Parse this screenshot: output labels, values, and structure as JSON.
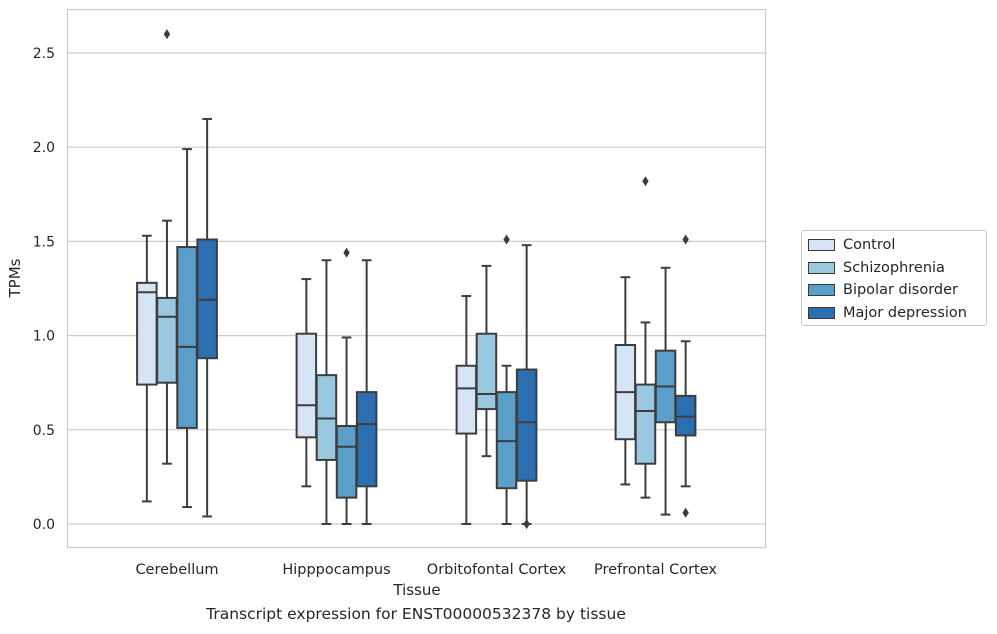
{
  "chart_data": {
    "type": "box",
    "xlabel": "Tissue",
    "ylabel": "TPMs",
    "ylim": [
      -0.12,
      2.75
    ],
    "yticks": [
      0.0,
      0.5,
      1.0,
      1.5,
      2.0,
      2.5
    ],
    "ytick_labels": [
      "0.0",
      "0.5",
      "1.0",
      "1.5",
      "2.0",
      "2.5"
    ],
    "grid": true,
    "legend_position": "right",
    "categories": [
      "Cerebellum",
      "Hipppocampus",
      "Orbitofontal Cortex",
      "Prefrontal Cortex"
    ],
    "series": [
      {
        "name": "Control",
        "color": "#d6e5f4",
        "boxes": [
          {
            "whislo": 0.12,
            "q1": 0.74,
            "med": 1.23,
            "q3": 1.28,
            "whishi": 1.53,
            "fliers": []
          },
          {
            "whislo": 0.2,
            "q1": 0.46,
            "med": 0.63,
            "q3": 1.01,
            "whishi": 1.3,
            "fliers": []
          },
          {
            "whislo": 0.0,
            "q1": 0.48,
            "med": 0.72,
            "q3": 0.84,
            "whishi": 1.21,
            "fliers": []
          },
          {
            "whislo": 0.21,
            "q1": 0.45,
            "med": 0.7,
            "q3": 0.95,
            "whishi": 1.31,
            "fliers": []
          }
        ]
      },
      {
        "name": "Schizophrenia",
        "color": "#9ac8e0",
        "boxes": [
          {
            "whislo": 0.32,
            "q1": 0.75,
            "med": 1.1,
            "q3": 1.2,
            "whishi": 1.61,
            "fliers": [
              2.6
            ]
          },
          {
            "whislo": 0.0,
            "q1": 0.34,
            "med": 0.56,
            "q3": 0.79,
            "whishi": 1.4,
            "fliers": []
          },
          {
            "whislo": 0.36,
            "q1": 0.61,
            "med": 0.69,
            "q3": 1.01,
            "whishi": 1.37,
            "fliers": []
          },
          {
            "whislo": 0.14,
            "q1": 0.32,
            "med": 0.6,
            "q3": 0.74,
            "whishi": 1.07,
            "fliers": [
              1.82
            ]
          }
        ]
      },
      {
        "name": "Bipolar disorder",
        "color": "#5a9ec9",
        "boxes": [
          {
            "whislo": 0.09,
            "q1": 0.51,
            "med": 0.94,
            "q3": 1.47,
            "whishi": 1.99,
            "fliers": []
          },
          {
            "whislo": 0.0,
            "q1": 0.14,
            "med": 0.41,
            "q3": 0.52,
            "whishi": 0.99,
            "fliers": [
              1.44
            ]
          },
          {
            "whislo": 0.0,
            "q1": 0.19,
            "med": 0.44,
            "q3": 0.7,
            "whishi": 0.84,
            "fliers": [
              1.51
            ]
          },
          {
            "whislo": 0.05,
            "q1": 0.54,
            "med": 0.73,
            "q3": 0.92,
            "whishi": 1.36,
            "fliers": []
          }
        ]
      },
      {
        "name": "Major depression",
        "color": "#2c6fb0",
        "boxes": [
          {
            "whislo": 0.04,
            "q1": 0.88,
            "med": 1.19,
            "q3": 1.51,
            "whishi": 2.15,
            "fliers": []
          },
          {
            "whislo": 0.0,
            "q1": 0.2,
            "med": 0.53,
            "q3": 0.7,
            "whishi": 1.4,
            "fliers": []
          },
          {
            "whislo": 0.0,
            "q1": 0.23,
            "med": 0.54,
            "q3": 0.82,
            "whishi": 1.48,
            "fliers": [
              0.0
            ]
          },
          {
            "whislo": 0.2,
            "q1": 0.47,
            "med": 0.57,
            "q3": 0.68,
            "whishi": 0.97,
            "fliers": [
              1.51,
              0.06
            ]
          }
        ]
      }
    ]
  },
  "caption": "Transcript expression for ENST00000532378 by tissue"
}
